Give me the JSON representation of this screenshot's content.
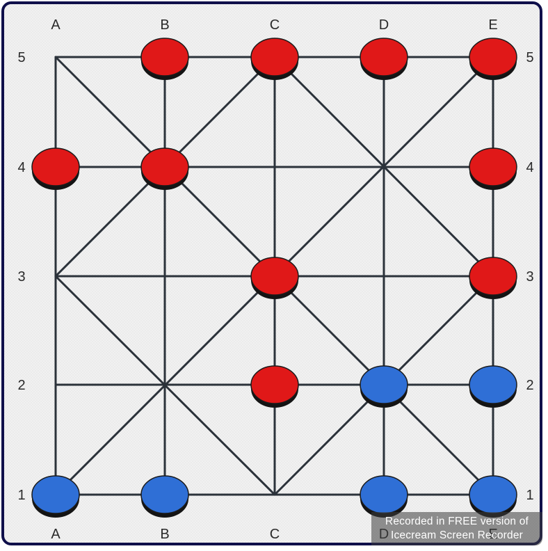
{
  "board": {
    "columns": [
      "A",
      "B",
      "C",
      "D",
      "E"
    ],
    "rows": [
      "1",
      "2",
      "3",
      "4",
      "5"
    ],
    "colors": {
      "line": "#2b323a",
      "red_piece": "#e01818",
      "red_piece_dark": "#141414",
      "blue_piece": "#2f6fd6",
      "blue_piece_dark": "#141414"
    },
    "connections": [
      [
        "A5",
        "E5"
      ],
      [
        "A4",
        "E4"
      ],
      [
        "A3",
        "E3"
      ],
      [
        "A2",
        "E2"
      ],
      [
        "A1",
        "E1"
      ],
      [
        "A1",
        "A5"
      ],
      [
        "B1",
        "B5"
      ],
      [
        "C1",
        "C5"
      ],
      [
        "D1",
        "D5"
      ],
      [
        "E1",
        "E5"
      ],
      [
        "A5",
        "C3"
      ],
      [
        "C3",
        "E1"
      ],
      [
        "E5",
        "A1"
      ],
      [
        "A3",
        "C5"
      ],
      [
        "C5",
        "E3"
      ],
      [
        "A3",
        "C1"
      ],
      [
        "C1",
        "E3"
      ]
    ],
    "pieces": [
      {
        "pos": "B5",
        "color": "red"
      },
      {
        "pos": "C5",
        "color": "red"
      },
      {
        "pos": "D5",
        "color": "red"
      },
      {
        "pos": "E5",
        "color": "red"
      },
      {
        "pos": "A4",
        "color": "red"
      },
      {
        "pos": "B4",
        "color": "red"
      },
      {
        "pos": "E4",
        "color": "red"
      },
      {
        "pos": "C3",
        "color": "red"
      },
      {
        "pos": "E3",
        "color": "red"
      },
      {
        "pos": "C2",
        "color": "red"
      },
      {
        "pos": "D2",
        "color": "blue"
      },
      {
        "pos": "E2",
        "color": "blue"
      },
      {
        "pos": "A1",
        "color": "blue"
      },
      {
        "pos": "B1",
        "color": "blue"
      },
      {
        "pos": "D1",
        "color": "blue"
      },
      {
        "pos": "E1",
        "color": "blue"
      }
    ]
  },
  "watermark": {
    "line1": "Recorded in FREE version of",
    "line2": "Icecream   Screen   Recorder"
  }
}
